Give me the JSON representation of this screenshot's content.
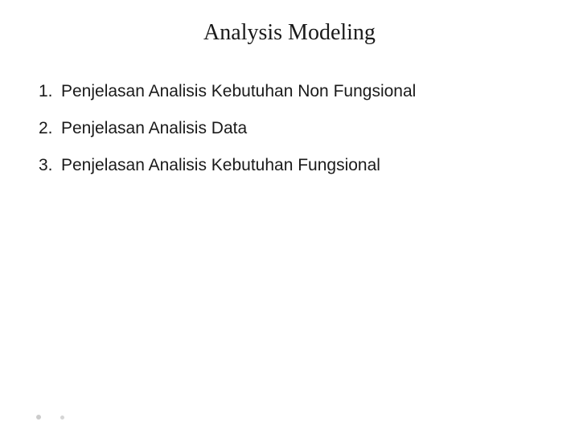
{
  "slide": {
    "title": "Analysis Modeling",
    "title_fontsize": 28,
    "title_color": "#1a1a1a",
    "title_font": "Georgia",
    "background_color": "#ffffff",
    "list": {
      "type": "ordered",
      "font": "Comic Sans MS",
      "fontsize": 21,
      "color": "#1a1a1a",
      "item_spacing": 22,
      "items": [
        {
          "number": "1.",
          "text": "Penjelasan Analisis Kebutuhan Non Fungsional"
        },
        {
          "number": "2.",
          "text": "Penjelasan Analisis Data"
        },
        {
          "number": "3.",
          "text": "Penjelasan Analisis Kebutuhan Fungsional"
        }
      ]
    },
    "decorations": {
      "dot_color": "#cccccc",
      "dot_count": 2
    }
  }
}
